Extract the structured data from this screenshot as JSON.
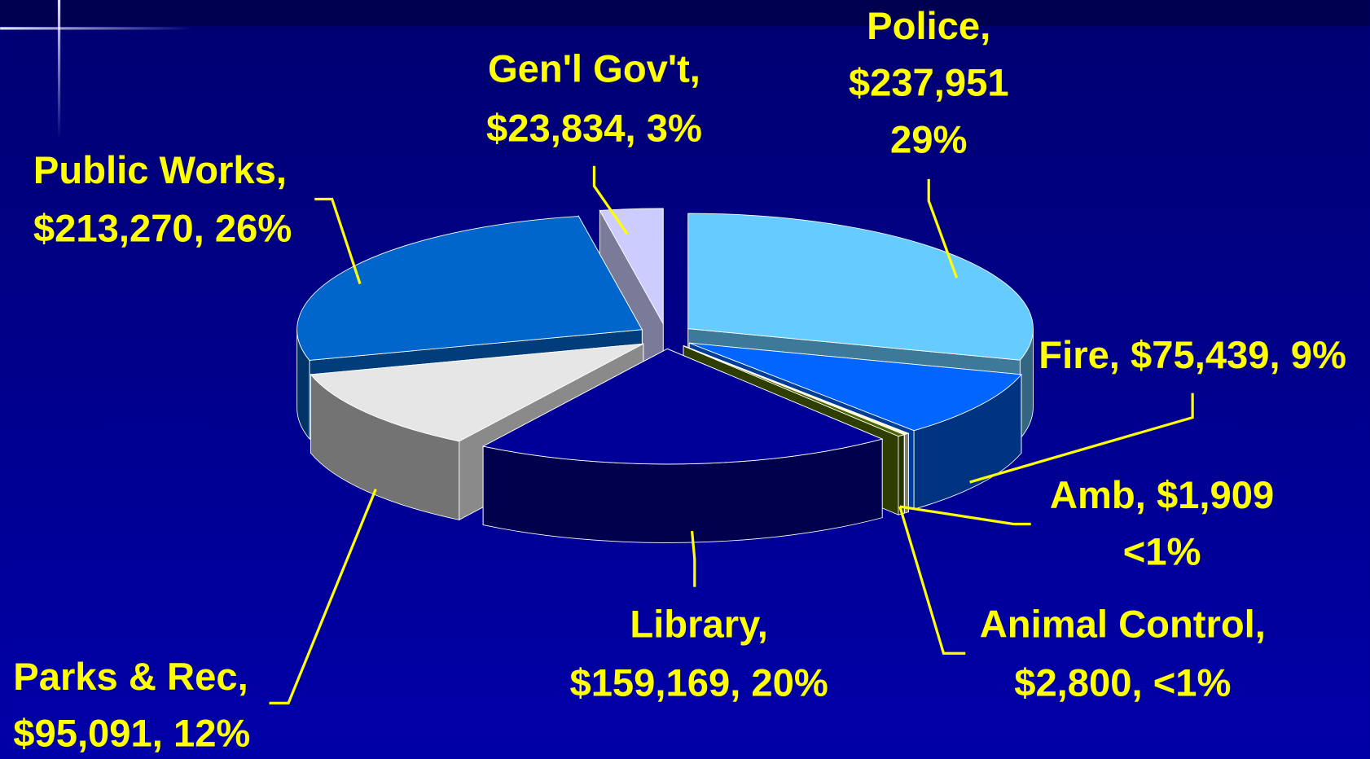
{
  "chart_data": {
    "type": "pie3d",
    "labels": [
      [
        "Police,",
        "$237,951",
        "29%"
      ],
      [
        "Fire, $75,439, 9%"
      ],
      [
        "Amb,  $1,909",
        "<1%"
      ],
      [
        "Animal Control,",
        "$2,800, <1%"
      ],
      [
        "Library,",
        "$159,169, 20%"
      ],
      [
        "Parks & Rec,",
        "$95,091, 12%"
      ],
      [
        "Public Works,",
        "$213,270, 26%"
      ],
      [
        "Gen'l Gov't,",
        "$23,834, 3%"
      ]
    ],
    "values": [
      237951,
      75439,
      1909,
      2800,
      159169,
      95091,
      213270,
      23834
    ],
    "colors": [
      "#66ccff",
      "#0066ff",
      "#ffffcc",
      "#4d6600",
      "#000099",
      "#e6e6e6",
      "#0066cc",
      "#ccccff"
    ]
  }
}
